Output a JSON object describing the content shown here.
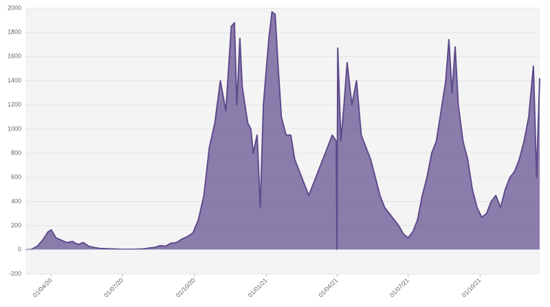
{
  "chart_data": {
    "type": "area",
    "x": [
      "2020-02-28",
      "2020-03-07",
      "2020-03-14",
      "2020-03-21",
      "2020-03-28",
      "2020-04-01",
      "2020-04-07",
      "2020-04-14",
      "2020-04-21",
      "2020-04-28",
      "2020-05-05",
      "2020-05-12",
      "2020-05-19",
      "2020-05-26",
      "2020-06-02",
      "2020-06-16",
      "2020-06-30",
      "2020-07-14",
      "2020-07-28",
      "2020-08-04",
      "2020-08-11",
      "2020-08-18",
      "2020-08-25",
      "2020-09-01",
      "2020-09-08",
      "2020-09-15",
      "2020-09-22",
      "2020-09-29",
      "2020-10-06",
      "2020-10-13",
      "2020-10-20",
      "2020-10-27",
      "2020-11-03",
      "2020-11-10",
      "2020-11-17",
      "2020-11-21",
      "2020-11-24",
      "2020-11-28",
      "2020-12-01",
      "2020-12-08",
      "2020-12-12",
      "2020-12-15",
      "2020-12-20",
      "2020-12-24",
      "2020-12-28",
      "2021-01-04",
      "2021-01-08",
      "2021-01-12",
      "2021-01-16",
      "2021-01-20",
      "2021-01-26",
      "2021-02-01",
      "2021-02-06",
      "2021-02-12",
      "2021-02-18",
      "2021-02-24",
      "2021-03-02",
      "2021-03-08",
      "2021-03-14",
      "2021-03-20",
      "2021-03-26",
      "2021-03-31",
      "2021-04-01",
      "2021-04-02",
      "2021-04-06",
      "2021-04-10",
      "2021-04-14",
      "2021-04-20",
      "2021-04-26",
      "2021-05-02",
      "2021-05-08",
      "2021-05-14",
      "2021-05-20",
      "2021-05-26",
      "2021-06-01",
      "2021-06-07",
      "2021-06-13",
      "2021-06-19",
      "2021-06-25",
      "2021-07-01",
      "2021-07-07",
      "2021-07-13",
      "2021-07-19",
      "2021-07-25",
      "2021-07-31",
      "2021-08-06",
      "2021-08-12",
      "2021-08-18",
      "2021-08-22",
      "2021-08-26",
      "2021-08-30",
      "2021-09-03",
      "2021-09-09",
      "2021-09-15",
      "2021-09-21",
      "2021-09-27",
      "2021-10-03",
      "2021-10-09",
      "2021-10-15",
      "2021-10-21",
      "2021-10-27",
      "2021-11-02",
      "2021-11-08",
      "2021-11-14",
      "2021-11-20",
      "2021-11-26",
      "2021-12-02",
      "2021-12-08",
      "2021-12-12",
      "2021-12-16"
    ],
    "values": [
      0,
      5,
      30,
      80,
      150,
      165,
      100,
      80,
      60,
      70,
      45,
      60,
      30,
      20,
      12,
      8,
      5,
      5,
      8,
      15,
      20,
      35,
      30,
      55,
      60,
      90,
      110,
      140,
      250,
      450,
      850,
      1050,
      1400,
      1150,
      1850,
      1880,
      1200,
      1750,
      1350,
      1050,
      1000,
      800,
      950,
      350,
      1200,
      1750,
      1970,
      1950,
      1500,
      1100,
      950,
      950,
      750,
      650,
      550,
      450,
      550,
      650,
      750,
      850,
      950,
      900,
      0,
      1670,
      900,
      1200,
      1550,
      1200,
      1400,
      950,
      850,
      750,
      600,
      450,
      350,
      300,
      250,
      200,
      130,
      100,
      150,
      250,
      450,
      600,
      800,
      900,
      1150,
      1400,
      1740,
      1300,
      1680,
      1200,
      900,
      750,
      500,
      350,
      270,
      300,
      400,
      450,
      350,
      500,
      600,
      650,
      750,
      900,
      1100,
      1520,
      600,
      1420
    ],
    "color": "#5e4a8c",
    "xlim": [
      "2020-02-28",
      "2021-12-16"
    ],
    "xticks": [
      {
        "value": "2020-04-01",
        "label": "01/04/20"
      },
      {
        "value": "2020-07-01",
        "label": "01/07/20"
      },
      {
        "value": "2020-10-01",
        "label": "01/10/20"
      },
      {
        "value": "2021-01-01",
        "label": "01/01/21"
      },
      {
        "value": "2021-04-01",
        "label": "01/04/21"
      },
      {
        "value": "2021-07-01",
        "label": "01/07/21"
      },
      {
        "value": "2021-10-01",
        "label": "01/10/21"
      }
    ],
    "ylim": [
      -200,
      2000
    ],
    "yticks": [
      -200,
      0,
      200,
      400,
      600,
      800,
      1000,
      1200,
      1400,
      1600,
      1800,
      2000
    ],
    "grid": true
  }
}
